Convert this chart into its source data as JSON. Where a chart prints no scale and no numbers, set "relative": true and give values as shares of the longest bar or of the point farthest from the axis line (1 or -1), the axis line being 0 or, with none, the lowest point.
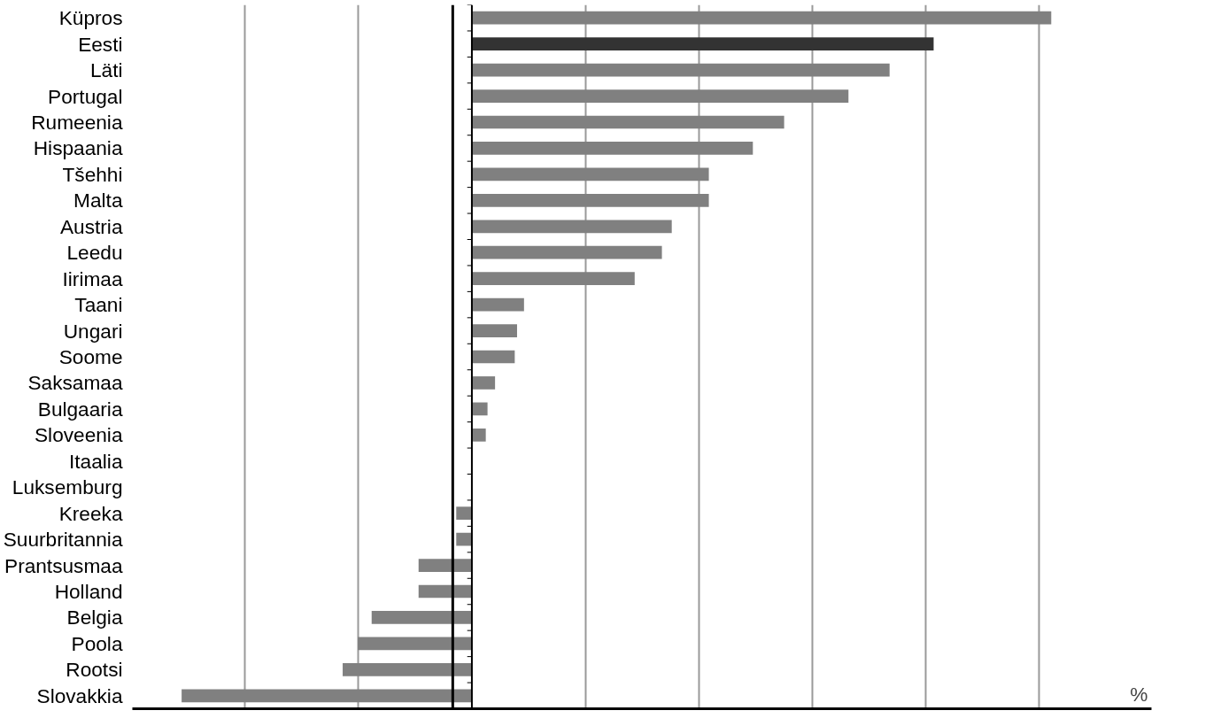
{
  "chart_data": {
    "type": "bar",
    "orientation": "horizontal",
    "relative": true,
    "xlabel": "%",
    "grid": "x",
    "categories": [
      "Küpros",
      "Eesti",
      "Läti",
      "Portugal",
      "Rumeenia",
      "Hispaania",
      "Tšehhi",
      "Malta",
      "Austria",
      "Leedu",
      "Iirimaa",
      "Taani",
      "Ungari",
      "Soome",
      "Saksamaa",
      "Bulgaaria",
      "Sloveenia",
      "Itaalia",
      "Luksemburg",
      "Kreeka",
      "Suurbritannia",
      "Prantsusmaa",
      "Holland",
      "Belgia",
      "Poola",
      "Rootsi",
      "Slovakkia"
    ],
    "values": [
      1.0,
      0.797,
      0.721,
      0.65,
      0.539,
      0.485,
      0.409,
      0.409,
      0.345,
      0.328,
      0.281,
      0.09,
      0.078,
      0.074,
      0.04,
      0.027,
      0.024,
      0,
      0,
      -0.027,
      -0.027,
      -0.092,
      -0.092,
      -0.173,
      -0.197,
      -0.223,
      -0.501
    ],
    "colors": [
      "#808080",
      "#333333",
      "#808080",
      "#808080",
      "#808080",
      "#808080",
      "#808080",
      "#808080",
      "#808080",
      "#808080",
      "#808080",
      "#808080",
      "#808080",
      "#808080",
      "#808080",
      "#808080",
      "#808080",
      "#808080",
      "#808080",
      "#808080",
      "#808080",
      "#808080",
      "#808080",
      "#808080",
      "#808080",
      "#808080",
      "#808080"
    ],
    "ref_lines": [
      {
        "axis": "x",
        "value": -0.033,
        "label": null,
        "color": "#000000"
      }
    ]
  }
}
